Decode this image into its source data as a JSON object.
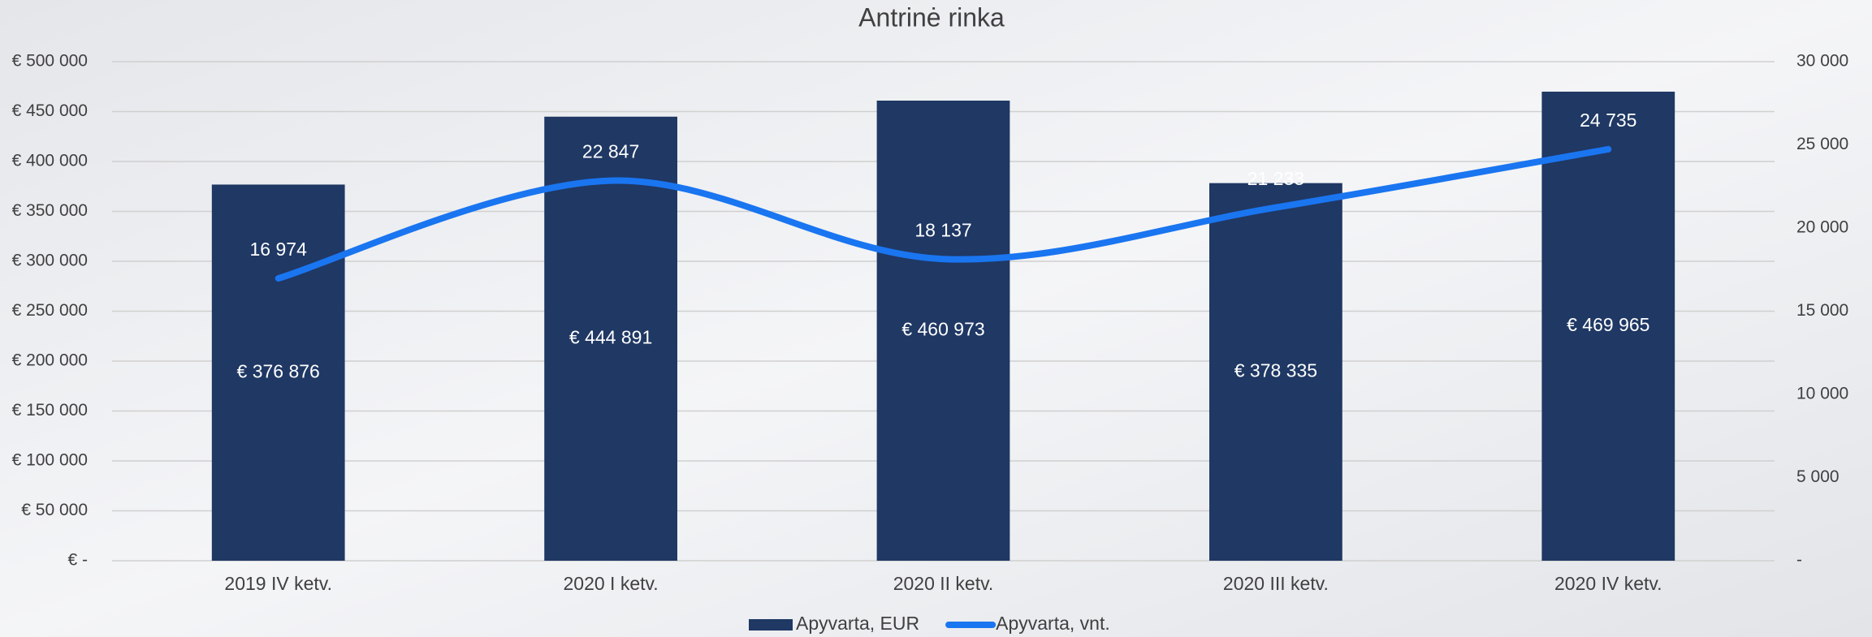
{
  "chart_data": {
    "type": "combo",
    "title": "Antrinė rinka",
    "categories": [
      "2019 IV ketv.",
      "2020 I ketv.",
      "2020 II ketv.",
      "2020 III ketv.",
      "2020 IV ketv."
    ],
    "series": [
      {
        "name": "Apyvarta, EUR",
        "type": "bar",
        "color": "#1f3864",
        "axis": "y",
        "values": [
          376876,
          444891,
          460973,
          378335,
          469965
        ],
        "value_labels": [
          "€ 376 876",
          "€ 444 891",
          "€ 460 973",
          "€ 378 335",
          "€ 469 965"
        ]
      },
      {
        "name": "Apyvarta, vnt.",
        "type": "line",
        "color": "#1a75f0",
        "axis": "y2",
        "values": [
          16974,
          22847,
          18137,
          21233,
          24735
        ],
        "value_labels": [
          "16 974",
          "22 847",
          "18 137",
          "21 233",
          "24 735"
        ]
      }
    ],
    "ylim": [
      0,
      500000
    ],
    "yticks": [
      {
        "value": 0,
        "label": "€ -"
      },
      {
        "value": 50000,
        "label": "€ 50 000"
      },
      {
        "value": 100000,
        "label": "€ 100 000"
      },
      {
        "value": 150000,
        "label": "€ 150 000"
      },
      {
        "value": 200000,
        "label": "€ 200 000"
      },
      {
        "value": 250000,
        "label": "€ 250 000"
      },
      {
        "value": 300000,
        "label": "€ 300 000"
      },
      {
        "value": 350000,
        "label": "€ 350 000"
      },
      {
        "value": 400000,
        "label": "€ 400 000"
      },
      {
        "value": 450000,
        "label": "€ 450 000"
      },
      {
        "value": 500000,
        "label": "€ 500 000"
      }
    ],
    "y2lim": [
      0,
      30000
    ],
    "y2ticks": [
      {
        "value": 0,
        "label": "-"
      },
      {
        "value": 5000,
        "label": "5 000"
      },
      {
        "value": 10000,
        "label": "10 000"
      },
      {
        "value": 15000,
        "label": "15 000"
      },
      {
        "value": 20000,
        "label": "20 000"
      },
      {
        "value": 25000,
        "label": "25 000"
      },
      {
        "value": 30000,
        "label": "30 000"
      }
    ],
    "grid": true,
    "legend": "bottom"
  }
}
